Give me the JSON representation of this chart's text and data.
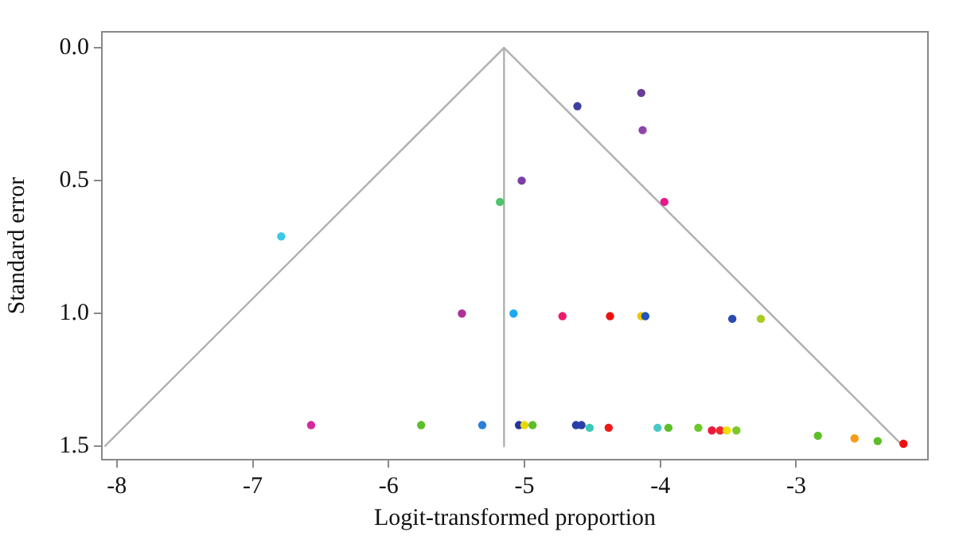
{
  "chart_data": {
    "type": "scatter",
    "xlabel": "Logit-transformed proportion",
    "ylabel": "Standard error",
    "xlim": [
      -8.11,
      -2.03
    ],
    "xticks": [
      -8,
      -7,
      -6,
      -5,
      -4,
      -3
    ],
    "ylim": [
      1.55,
      -0.06
    ],
    "yticks": [
      {
        "value": 0,
        "label": "0.0"
      },
      {
        "value": 0.5,
        "label": "0.5"
      },
      {
        "value": 1,
        "label": "1.0"
      },
      {
        "value": 1.5,
        "label": "1.5"
      }
    ],
    "grid": false,
    "legend": false,
    "series": [
      {
        "type": "scatter",
        "marker": "circle",
        "x": [
          -4.14,
          -4.61,
          -4.13,
          -5.02,
          -5.18,
          -3.97,
          -6.79,
          -5.46,
          -5.08,
          -4.72,
          -4.37,
          -4.14,
          -4.11,
          -3.47,
          -3.26,
          -6.57,
          -5.76,
          -5.31,
          -5.04,
          -5.0,
          -4.94,
          -4.62,
          -4.58,
          -4.52,
          -4.38,
          -4.02,
          -3.94,
          -3.72,
          -3.62,
          -3.56,
          -3.51,
          -3.44,
          -2.84,
          -2.57,
          -2.4,
          -2.21
        ],
        "values": [
          0.17,
          0.22,
          0.31,
          0.5,
          0.58,
          0.58,
          0.71,
          1.0,
          1.0,
          1.01,
          1.01,
          1.01,
          1.01,
          1.02,
          1.02,
          1.42,
          1.42,
          1.42,
          1.42,
          1.42,
          1.42,
          1.42,
          1.42,
          1.43,
          1.43,
          1.43,
          1.43,
          1.43,
          1.44,
          1.44,
          1.44,
          1.44,
          1.46,
          1.47,
          1.48,
          1.49
        ],
        "colors": [
          "#6a3d9a",
          "#3f3fa0",
          "#8e44ad",
          "#7b3fa8",
          "#4fc46a",
          "#e8188c",
          "#3cc8e8",
          "#b0309a",
          "#1eaaf0",
          "#ee1a6e",
          "#ee1111",
          "#f0c800",
          "#2255bb",
          "#2a4ab0",
          "#a8cc22",
          "#d6289e",
          "#5cbf2a",
          "#2a7fd8",
          "#223399",
          "#e8d800",
          "#5cbf2a",
          "#2a3fa8",
          "#2a3fa8",
          "#3cc8b4",
          "#ee1a1a",
          "#4cc8c8",
          "#5cbf2a",
          "#6cc82a",
          "#ee1a3a",
          "#ee2a2a",
          "#f0e000",
          "#7cc82a",
          "#5cbf2a",
          "#f89a1a",
          "#5cbf2a",
          "#ee1111"
        ]
      },
      {
        "type": "line",
        "marker": "none",
        "color": "#b0b0b0",
        "x": [
          -8.09,
          -5.15,
          -2.21
        ],
        "values": [
          1.5,
          0,
          1.5
        ]
      },
      {
        "type": "line",
        "marker": "none",
        "color": "#b0b0b0",
        "x": [
          -5.15,
          -5.15
        ],
        "values": [
          0,
          1.5
        ]
      }
    ]
  }
}
